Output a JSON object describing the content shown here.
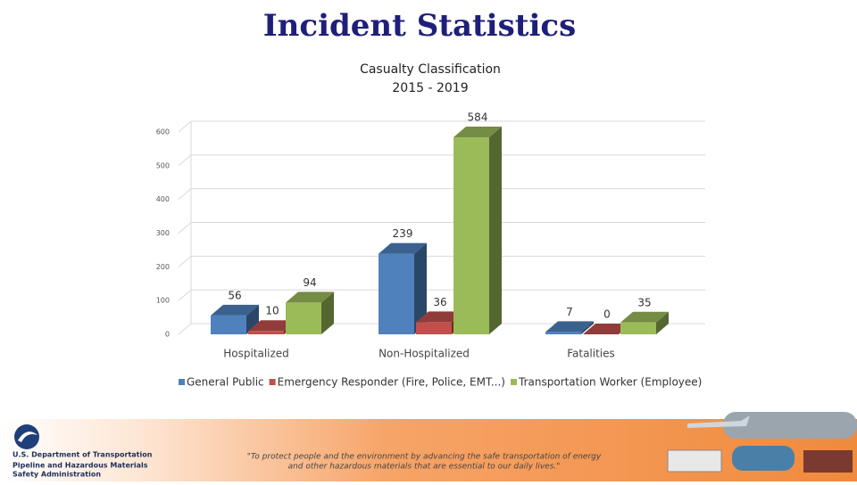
{
  "slide_title": "Incident Statistics",
  "chart_data": {
    "type": "bar3d",
    "title": "Casualty Classification",
    "subtitle": "2015 - 2019",
    "categories": [
      "Hospitalized",
      "Non-Hospitalized",
      "Fatalities"
    ],
    "series": [
      {
        "name": "General Public",
        "color": "#4f81bd",
        "values": [
          56,
          239,
          7
        ]
      },
      {
        "name": "Emergency Responder (Fire, Police, EMT...)",
        "color": "#c0504d",
        "values": [
          10,
          36,
          0
        ]
      },
      {
        "name": "Transportation Worker (Employee)",
        "color": "#9bbb59",
        "values": [
          94,
          584,
          35
        ]
      }
    ],
    "ylim": [
      0,
      600
    ],
    "yticks": [
      0,
      100,
      200,
      300,
      400,
      500,
      600
    ],
    "grid": true,
    "legend": "bottom"
  },
  "footer": {
    "agency": "U.S. Department of Transportation",
    "office_line1": "Pipeline and Hazardous Materials",
    "office_line2": "Safety Administration",
    "quote_line1": "\"To protect people and the environment by advancing the safe transportation of energy",
    "quote_line2": "and other hazardous materials that are essential to our daily lives.\""
  }
}
